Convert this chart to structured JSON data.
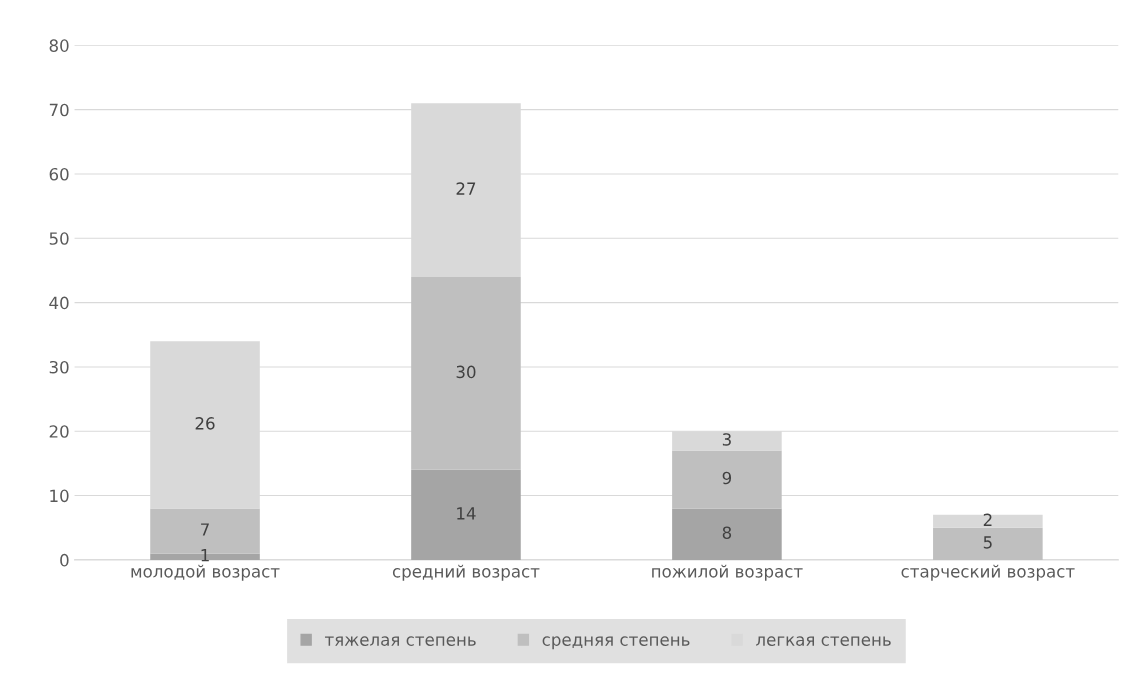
{
  "chart_data": {
    "type": "bar",
    "stacked": true,
    "categories": [
      "молодой возраст",
      "средний возраст",
      "пожилой возраст",
      "старческий возраст"
    ],
    "series": [
      {
        "name": "тяжелая степень",
        "color": "#a5a5a5",
        "values": [
          1,
          14,
          8,
          0
        ],
        "value_labels": [
          "1",
          "14",
          "8",
          null
        ]
      },
      {
        "name": "средняя степень",
        "color": "#bfbfbf",
        "values": [
          7,
          30,
          9,
          5
        ],
        "value_labels": [
          "7",
          "30",
          "9",
          "5"
        ]
      },
      {
        "name": "легкая степень",
        "color": "#d9d9d9",
        "values": [
          26,
          27,
          3,
          2
        ],
        "value_labels": [
          "26",
          "27",
          "3",
          "2"
        ]
      }
    ],
    "ylim": [
      0,
      80
    ],
    "yticks": [
      0,
      10,
      20,
      30,
      40,
      50,
      60,
      70,
      80
    ],
    "grid": "y",
    "legend": "bottom"
  }
}
